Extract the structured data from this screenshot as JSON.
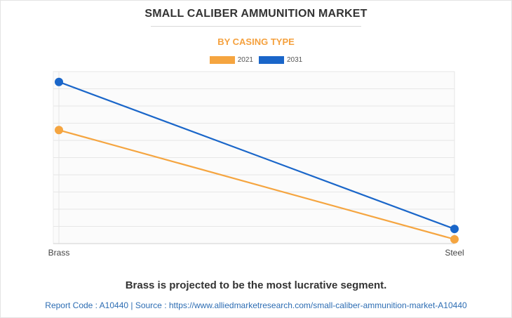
{
  "header": {
    "title": "SMALL CALIBER AMMUNITION MARKET",
    "subtitle": "BY CASING TYPE",
    "subtitle_color": "#f5a13e"
  },
  "legend": [
    {
      "label": "2021",
      "color": "#f5a540"
    },
    {
      "label": "2031",
      "color": "#1a66c9"
    }
  ],
  "chart_data": {
    "type": "line",
    "categories": [
      "Brass",
      "Steel"
    ],
    "series": [
      {
        "name": "2021",
        "color": "#f5a540",
        "values": [
          66,
          2.5
        ]
      },
      {
        "name": "2031",
        "color": "#1a66c9",
        "values": [
          94,
          8.5
        ]
      }
    ],
    "ylim": [
      0,
      100
    ],
    "y_ticks_shown": false,
    "grid": true,
    "legend_position": "top-center"
  },
  "footer": {
    "note": "Brass is projected to be the most lucrative segment.",
    "report": "Report Code : A10440  |  Source : https://www.alliedmarketresearch.com/small-caliber-ammunition-market-A10440"
  }
}
